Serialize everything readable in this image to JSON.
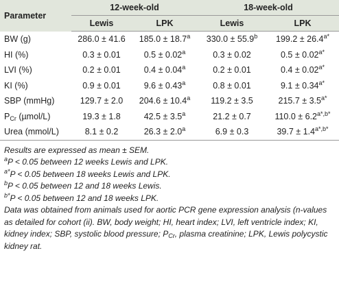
{
  "table": {
    "header": [
      [
        "Parameter",
        "12-week-old",
        "18-week-old"
      ],
      [
        "Lewis",
        "LPK",
        "Lewis",
        "LPK"
      ]
    ],
    "rows": [
      {
        "label": [
          {
            "text": "BW (g)"
          }
        ],
        "cells": [
          {
            "text": "286.0 ± 41.6"
          },
          {
            "text": "185.0 ± 18.7",
            "sup": "a"
          },
          {
            "text": "330.0 ± 55.9",
            "sup": "b"
          },
          {
            "text": "199.2 ± 26.4",
            "sup": "a*"
          }
        ]
      },
      {
        "label": [
          {
            "text": "HI (%)"
          }
        ],
        "cells": [
          {
            "text": "0.3 ± 0.01"
          },
          {
            "text": "0.5 ± 0.02",
            "sup": "a"
          },
          {
            "text": "0.3 ± 0.02"
          },
          {
            "text": "0.5 ± 0.02",
            "sup": "a*"
          }
        ]
      },
      {
        "label": [
          {
            "text": "LVI (%)"
          }
        ],
        "cells": [
          {
            "text": "0.2 ± 0.01"
          },
          {
            "text": "0.4 ± 0.04",
            "sup": "a"
          },
          {
            "text": "0.2 ± 0.01"
          },
          {
            "text": "0.4 ± 0.02",
            "sup": "a*"
          }
        ]
      },
      {
        "label": [
          {
            "text": "KI (%)"
          }
        ],
        "cells": [
          {
            "text": "0.9 ± 0.01"
          },
          {
            "text": "9.6 ± 0.43",
            "sup": "a"
          },
          {
            "text": "0.8 ± 0.01"
          },
          {
            "text": "9.1 ± 0.34",
            "sup": "a*"
          }
        ]
      },
      {
        "label": [
          {
            "text": "SBP (mmHg)"
          }
        ],
        "cells": [
          {
            "text": "129.7 ± 2.0"
          },
          {
            "text": "204.6 ± 10.4",
            "sup": "a"
          },
          {
            "text": "119.2 ± 3.5"
          },
          {
            "text": "215.7 ± 3.5",
            "sup": "a*"
          }
        ]
      },
      {
        "label": [
          {
            "text": "P"
          },
          {
            "sub": "Cr"
          },
          {
            "text": " (µmol/L)"
          }
        ],
        "cells": [
          {
            "text": "19.3 ± 1.8"
          },
          {
            "text": "42.5 ± 3.5",
            "sup": "a"
          },
          {
            "text": "21.2 ± 0.7"
          },
          {
            "text": "110.0 ± 6.2",
            "sup": "a*,b*"
          }
        ]
      },
      {
        "label": [
          {
            "text": "Urea (mmol/L)"
          }
        ],
        "cells": [
          {
            "text": "8.1 ± 0.2"
          },
          {
            "text": "26.3 ± 2.0",
            "sup": "a"
          },
          {
            "text": "6.9 ± 0.3"
          },
          {
            "text": "39.7 ± 1.4",
            "sup": "a*,b*"
          }
        ]
      }
    ]
  },
  "notes": [
    [
      {
        "text": "Results are expressed as mean ± SEM."
      }
    ],
    [
      {
        "sup": "a"
      },
      {
        "text": "P < 0.05 between 12 weeks Lewis and LPK."
      }
    ],
    [
      {
        "sup": "a*"
      },
      {
        "text": "P < 0.05 between 18 weeks Lewis and LPK."
      }
    ],
    [
      {
        "sup": "b"
      },
      {
        "text": "P < 0.05 between 12 and 18 weeks Lewis."
      }
    ],
    [
      {
        "sup": "b*"
      },
      {
        "text": "P < 0.05 between 12 and 18 weeks LPK."
      }
    ],
    [
      {
        "text": "Data was obtained from animals used for aortic PCR gene expression analysis (n-values as detailed for cohort (ii). BW, body weight; HI, heart index; LVI, left ventricle index; KI, kidney index; SBP, systolic blood pressure; P"
      },
      {
        "sub": "Cr"
      },
      {
        "text": ", plasma creatinine; LPK, Lewis polycystic kidney rat."
      }
    ]
  ]
}
